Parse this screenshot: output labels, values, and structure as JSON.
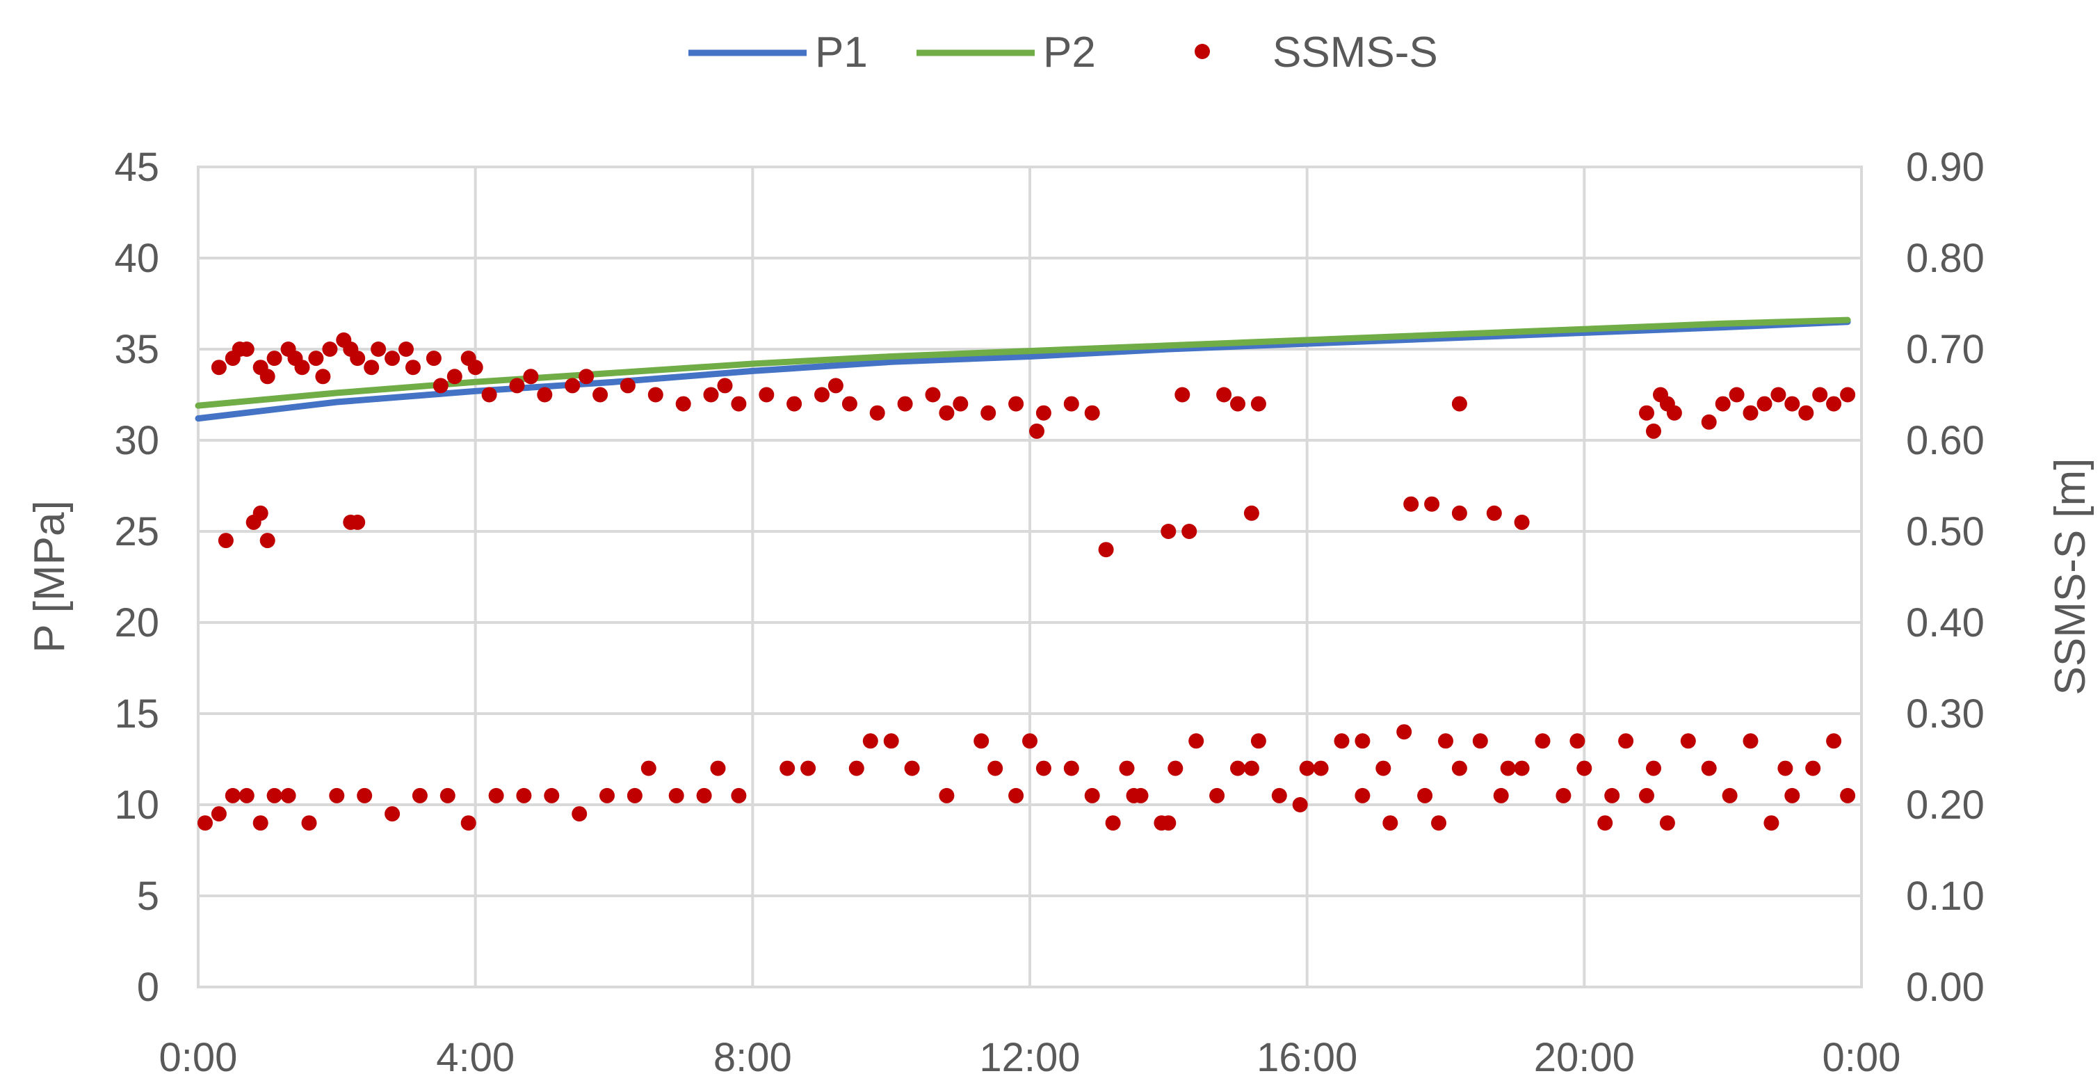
{
  "chart_data": {
    "type": "line+scatter",
    "x_axis": {
      "ticks": [
        "0:00",
        "4:00",
        "8:00",
        "12:00",
        "16:00",
        "20:00",
        "0:00"
      ],
      "range_hours": [
        0,
        24
      ]
    },
    "y_left": {
      "label": "P [MPa]",
      "ticks": [
        "0",
        "5",
        "10",
        "15",
        "20",
        "25",
        "30",
        "35",
        "40",
        "45"
      ],
      "range": [
        0,
        45
      ]
    },
    "y_right": {
      "label": "SSMS-S [m]",
      "ticks": [
        "0.00",
        "0.10",
        "0.20",
        "0.30",
        "0.40",
        "0.50",
        "0.60",
        "0.70",
        "0.80",
        "0.90"
      ],
      "range": [
        0,
        0.9
      ]
    },
    "grid": true,
    "legend_position": "top",
    "series": [
      {
        "name": "P1",
        "kind": "line",
        "axis": "left",
        "color": "#4472C4",
        "points": [
          [
            0.0,
            31.2
          ],
          [
            2.0,
            32.1
          ],
          [
            4.0,
            32.7
          ],
          [
            6.0,
            33.2
          ],
          [
            8.0,
            33.8
          ],
          [
            10.0,
            34.3
          ],
          [
            12.0,
            34.6
          ],
          [
            14.0,
            35.0
          ],
          [
            16.0,
            35.3
          ],
          [
            18.0,
            35.6
          ],
          [
            20.0,
            35.9
          ],
          [
            22.0,
            36.2
          ],
          [
            23.8,
            36.5
          ]
        ]
      },
      {
        "name": "P2",
        "kind": "line",
        "axis": "left",
        "color": "#70AD47",
        "points": [
          [
            0.0,
            31.9
          ],
          [
            2.0,
            32.6
          ],
          [
            4.0,
            33.2
          ],
          [
            6.0,
            33.7
          ],
          [
            8.0,
            34.2
          ],
          [
            10.0,
            34.6
          ],
          [
            12.0,
            34.9
          ],
          [
            14.0,
            35.2
          ],
          [
            16.0,
            35.5
          ],
          [
            18.0,
            35.8
          ],
          [
            20.0,
            36.1
          ],
          [
            22.0,
            36.4
          ],
          [
            23.8,
            36.6
          ]
        ]
      },
      {
        "name": "SSMS-S",
        "kind": "scatter",
        "axis": "right",
        "color": "#C00000",
        "points": [
          [
            0.3,
            0.68
          ],
          [
            0.5,
            0.69
          ],
          [
            0.7,
            0.7
          ],
          [
            0.9,
            0.68
          ],
          [
            1.1,
            0.69
          ],
          [
            1.3,
            0.7
          ],
          [
            1.5,
            0.68
          ],
          [
            1.7,
            0.69
          ],
          [
            1.9,
            0.7
          ],
          [
            2.1,
            0.71
          ],
          [
            2.3,
            0.69
          ],
          [
            2.5,
            0.68
          ],
          [
            2.8,
            0.69
          ],
          [
            3.1,
            0.68
          ],
          [
            3.4,
            0.69
          ],
          [
            3.7,
            0.67
          ],
          [
            4.0,
            0.68
          ],
          [
            0.6,
            0.7
          ],
          [
            1.0,
            0.67
          ],
          [
            1.4,
            0.69
          ],
          [
            1.8,
            0.67
          ],
          [
            2.2,
            0.7
          ],
          [
            2.6,
            0.7
          ],
          [
            3.0,
            0.7
          ],
          [
            3.5,
            0.66
          ],
          [
            3.9,
            0.69
          ],
          [
            4.2,
            0.65
          ],
          [
            4.6,
            0.66
          ],
          [
            5.0,
            0.65
          ],
          [
            5.4,
            0.66
          ],
          [
            5.8,
            0.65
          ],
          [
            6.2,
            0.66
          ],
          [
            6.6,
            0.65
          ],
          [
            7.0,
            0.64
          ],
          [
            7.4,
            0.65
          ],
          [
            7.8,
            0.64
          ],
          [
            8.2,
            0.65
          ],
          [
            8.6,
            0.64
          ],
          [
            9.0,
            0.65
          ],
          [
            9.4,
            0.64
          ],
          [
            9.8,
            0.63
          ],
          [
            10.2,
            0.64
          ],
          [
            10.6,
            0.65
          ],
          [
            11.0,
            0.64
          ],
          [
            11.4,
            0.63
          ],
          [
            11.8,
            0.64
          ],
          [
            12.2,
            0.63
          ],
          [
            12.6,
            0.64
          ],
          [
            12.9,
            0.63
          ],
          [
            4.8,
            0.67
          ],
          [
            5.6,
            0.67
          ],
          [
            7.6,
            0.66
          ],
          [
            9.2,
            0.66
          ],
          [
            10.8,
            0.63
          ],
          [
            12.1,
            0.61
          ],
          [
            14.2,
            0.65
          ],
          [
            14.8,
            0.65
          ],
          [
            15.0,
            0.64
          ],
          [
            15.3,
            0.64
          ],
          [
            18.2,
            0.64
          ],
          [
            20.9,
            0.63
          ],
          [
            21.0,
            0.61
          ],
          [
            21.1,
            0.65
          ],
          [
            21.2,
            0.64
          ],
          [
            21.3,
            0.63
          ],
          [
            21.8,
            0.62
          ],
          [
            22.0,
            0.64
          ],
          [
            22.2,
            0.65
          ],
          [
            22.4,
            0.63
          ],
          [
            22.6,
            0.64
          ],
          [
            22.8,
            0.65
          ],
          [
            23.0,
            0.64
          ],
          [
            23.2,
            0.63
          ],
          [
            23.4,
            0.65
          ],
          [
            23.6,
            0.64
          ],
          [
            23.8,
            0.65
          ],
          [
            0.4,
            0.49
          ],
          [
            0.8,
            0.51
          ],
          [
            0.9,
            0.52
          ],
          [
            1.0,
            0.49
          ],
          [
            2.2,
            0.51
          ],
          [
            2.3,
            0.51
          ],
          [
            13.1,
            0.48
          ],
          [
            14.0,
            0.5
          ],
          [
            14.3,
            0.5
          ],
          [
            15.2,
            0.52
          ],
          [
            17.5,
            0.53
          ],
          [
            17.8,
            0.53
          ],
          [
            18.2,
            0.52
          ],
          [
            18.7,
            0.52
          ],
          [
            19.1,
            0.51
          ],
          [
            0.1,
            0.18
          ],
          [
            0.3,
            0.19
          ],
          [
            0.5,
            0.21
          ],
          [
            0.7,
            0.21
          ],
          [
            0.9,
            0.18
          ],
          [
            1.1,
            0.21
          ],
          [
            1.3,
            0.21
          ],
          [
            1.6,
            0.18
          ],
          [
            2.0,
            0.21
          ],
          [
            2.4,
            0.21
          ],
          [
            2.8,
            0.19
          ],
          [
            3.2,
            0.21
          ],
          [
            3.6,
            0.21
          ],
          [
            3.9,
            0.18
          ],
          [
            4.3,
            0.21
          ],
          [
            4.7,
            0.21
          ],
          [
            5.1,
            0.21
          ],
          [
            5.5,
            0.19
          ],
          [
            5.9,
            0.21
          ],
          [
            6.3,
            0.21
          ],
          [
            6.5,
            0.24
          ],
          [
            6.9,
            0.21
          ],
          [
            7.3,
            0.21
          ],
          [
            7.5,
            0.24
          ],
          [
            7.8,
            0.21
          ],
          [
            8.5,
            0.24
          ],
          [
            8.8,
            0.24
          ],
          [
            9.5,
            0.24
          ],
          [
            9.7,
            0.27
          ],
          [
            10.0,
            0.27
          ],
          [
            10.3,
            0.24
          ],
          [
            10.8,
            0.21
          ],
          [
            11.3,
            0.27
          ],
          [
            11.5,
            0.24
          ],
          [
            11.8,
            0.21
          ],
          [
            12.0,
            0.27
          ],
          [
            12.2,
            0.24
          ],
          [
            12.6,
            0.24
          ],
          [
            12.9,
            0.21
          ],
          [
            13.2,
            0.18
          ],
          [
            13.4,
            0.24
          ],
          [
            13.6,
            0.21
          ],
          [
            13.9,
            0.18
          ],
          [
            14.1,
            0.24
          ],
          [
            14.4,
            0.27
          ],
          [
            14.7,
            0.21
          ],
          [
            15.0,
            0.24
          ],
          [
            15.3,
            0.27
          ],
          [
            15.6,
            0.21
          ],
          [
            15.9,
            0.2
          ],
          [
            16.2,
            0.24
          ],
          [
            16.5,
            0.27
          ],
          [
            16.8,
            0.21
          ],
          [
            17.1,
            0.24
          ],
          [
            17.4,
            0.28
          ],
          [
            17.7,
            0.21
          ],
          [
            17.9,
            0.18
          ],
          [
            18.2,
            0.24
          ],
          [
            18.5,
            0.27
          ],
          [
            18.8,
            0.21
          ],
          [
            19.1,
            0.24
          ],
          [
            19.4,
            0.27
          ],
          [
            19.7,
            0.21
          ],
          [
            20.0,
            0.24
          ],
          [
            20.3,
            0.18
          ],
          [
            20.6,
            0.27
          ],
          [
            20.9,
            0.21
          ],
          [
            21.2,
            0.18
          ],
          [
            21.5,
            0.27
          ],
          [
            21.8,
            0.24
          ],
          [
            22.1,
            0.21
          ],
          [
            22.4,
            0.27
          ],
          [
            22.7,
            0.18
          ],
          [
            23.0,
            0.21
          ],
          [
            23.3,
            0.24
          ],
          [
            23.6,
            0.27
          ],
          [
            23.8,
            0.21
          ],
          [
            13.5,
            0.21
          ],
          [
            14.0,
            0.18
          ],
          [
            15.2,
            0.24
          ],
          [
            16.0,
            0.24
          ],
          [
            16.8,
            0.27
          ],
          [
            17.2,
            0.18
          ],
          [
            18.0,
            0.27
          ],
          [
            18.9,
            0.24
          ],
          [
            19.9,
            0.27
          ],
          [
            20.4,
            0.21
          ],
          [
            21.0,
            0.24
          ],
          [
            22.9,
            0.24
          ]
        ]
      }
    ]
  }
}
